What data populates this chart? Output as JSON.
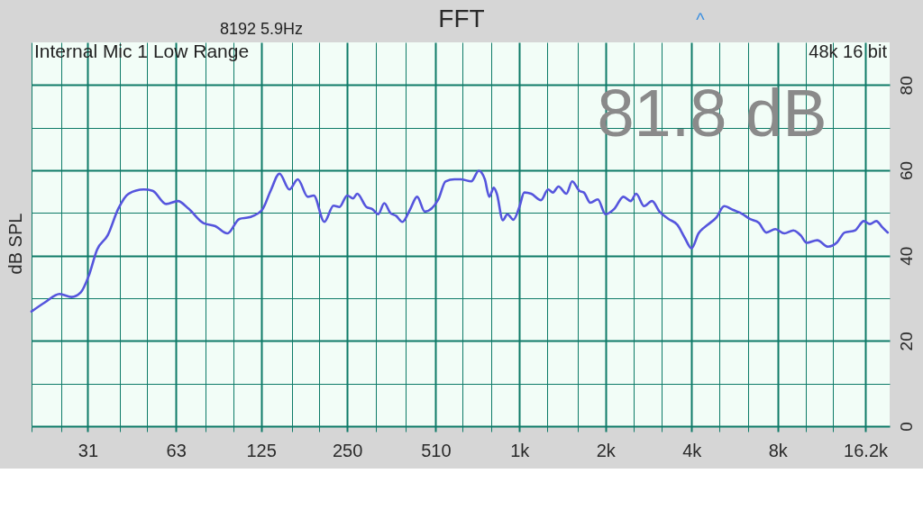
{
  "chart_data": {
    "type": "line",
    "title": "FFT",
    "ylabel": "dB SPL",
    "annotations": [
      "8192 5.9Hz",
      "^",
      "Internal Mic 1 Low Range",
      "48k 16 bit",
      "81.8 dB"
    ],
    "x": [
      19.7,
      21.9,
      24.7,
      27.2,
      29.3,
      31.2,
      33.4,
      36.4,
      39.6,
      43,
      48.6,
      52.2,
      58.2,
      64,
      69.7,
      78.6,
      86.5,
      95.3,
      105,
      114,
      126,
      135,
      145,
      157,
      168,
      182,
      191,
      208,
      224,
      235,
      250,
      262,
      271,
      292,
      306,
      321,
      337,
      354,
      371,
      390,
      414,
      439,
      467,
      520,
      552,
      593,
      623,
      679,
      721,
      757,
      785,
      814,
      834,
      875,
      908,
      953,
      1000,
      1040,
      1100,
      1190,
      1260,
      1310,
      1370,
      1460,
      1530,
      1620,
      1680,
      1770,
      1880,
      2000,
      2150,
      2310,
      2450,
      2560,
      2730,
      2910,
      3090,
      3320,
      3570,
      3790,
      4000,
      4230,
      4550,
      4890,
      5200,
      5590,
      6010,
      6390,
      6870,
      7300,
      7850,
      8440,
      9070,
      9640,
      10100,
      11000,
      12000,
      12900,
      13700,
      14900,
      16000,
      16800,
      17700,
      18600,
      19400
    ],
    "series": [
      {
        "color": "#5555dd",
        "values": [
          26.9,
          29.0,
          31.0,
          30.3,
          31.4,
          35.2,
          41.4,
          44.8,
          51.0,
          54.5,
          55.5,
          55.2,
          52.1,
          52.8,
          51.0,
          47.6,
          46.9,
          45.2,
          48.6,
          49.0,
          50.7,
          55.2,
          59.2,
          55.5,
          57.9,
          53.8,
          54.1,
          47.9,
          51.7,
          51.4,
          54.1,
          53.4,
          54.5,
          51.4,
          50.9,
          49.7,
          52.3,
          50.0,
          49.3,
          47.9,
          50.7,
          53.8,
          50.3,
          53.1,
          57.4,
          57.9,
          57.9,
          57.4,
          59.9,
          57.9,
          53.8,
          55.9,
          54.5,
          48.3,
          49.7,
          48.4,
          51.4,
          54.8,
          54.5,
          53.0,
          55.5,
          54.8,
          56.2,
          54.5,
          57.4,
          55.2,
          54.8,
          52.4,
          53.2,
          49.7,
          51.0,
          53.8,
          52.8,
          54.5,
          51.6,
          52.8,
          50.3,
          48.6,
          47.2,
          44.1,
          41.7,
          45.2,
          47.2,
          49.0,
          51.6,
          50.7,
          49.8,
          48.6,
          47.7,
          45.4,
          46.2,
          45.2,
          45.9,
          44.7,
          43.0,
          43.6,
          42.1,
          43.1,
          45.4,
          45.9,
          48.1,
          47.4,
          48.1,
          46.6,
          45.4
        ]
      }
    ],
    "log": "x",
    "xlim": [
      19.7,
      19700
    ],
    "xticks": [
      {
        "value": 19.7,
        "label": null
      },
      {
        "value": 25,
        "label": null
      },
      31,
      {
        "value": 40,
        "label": null
      },
      {
        "value": 50,
        "label": null
      },
      63,
      {
        "value": 80,
        "label": null
      },
      {
        "value": 100,
        "label": null
      },
      125,
      {
        "value": 160,
        "label": null
      },
      {
        "value": 200,
        "label": null
      },
      250,
      {
        "value": 315,
        "label": null
      },
      {
        "value": 400,
        "label": null
      },
      510,
      {
        "value": 630,
        "label": null
      },
      {
        "value": 800,
        "label": null
      },
      {
        "value": 1000,
        "label": "1k"
      },
      {
        "value": 1250,
        "label": null
      },
      {
        "value": 1600,
        "label": null
      },
      {
        "value": 2000,
        "label": "2k"
      },
      {
        "value": 2500,
        "label": null
      },
      {
        "value": 3150,
        "label": null
      },
      {
        "value": 4000,
        "label": "4k"
      },
      {
        "value": 5000,
        "label": null
      },
      {
        "value": 6300,
        "label": null
      },
      {
        "value": 8000,
        "label": "8k"
      },
      {
        "value": 10000,
        "label": null
      },
      {
        "value": 12500,
        "label": null
      },
      {
        "value": 16200,
        "label": "16.2k"
      }
    ],
    "ylim": [
      0,
      90
    ],
    "yticks": [
      0,
      {
        "value": 10,
        "label": null
      },
      20,
      {
        "value": 30,
        "label": null
      },
      40,
      {
        "value": 50,
        "label": null
      },
      60,
      {
        "value": 70,
        "label": null
      },
      80
    ],
    "grid": true,
    "line_style": "solid"
  }
}
